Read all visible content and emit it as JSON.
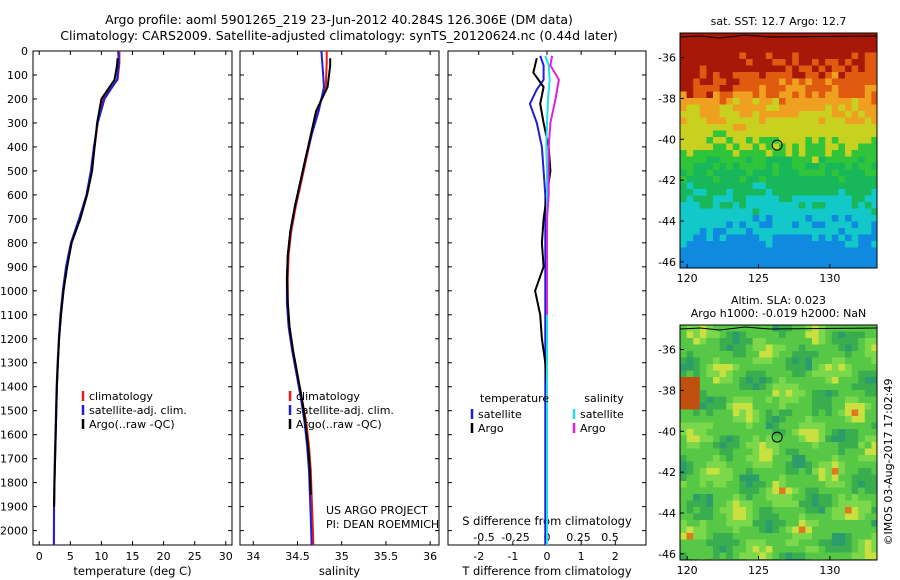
{
  "header": {
    "line1": "Argo profile: aoml 5901265_219 23-Jun-2012 40.284S 126.306E (DM data)",
    "line2": "Climatology: CARS2009. Satellite-adjusted climatology: synTS_20120624.nc (0.44d later)"
  },
  "side_text": "©IMOS 03-Aug-2017 17:02:49",
  "colors": {
    "climatology": "#e41a1c",
    "satellite": "#1f1fd6",
    "argo": "#000000",
    "sal_satellite": "#20e0e8",
    "sal_argo": "#e020e0"
  },
  "depth_axis": {
    "ticks": [
      "0",
      "100",
      "200",
      "300",
      "400",
      "500",
      "600",
      "700",
      "800",
      "900",
      "1000",
      "1100",
      "1200",
      "1300",
      "1400",
      "1500",
      "1600",
      "1700",
      "1800",
      "1900",
      "2000"
    ],
    "values": [
      0,
      100,
      200,
      300,
      400,
      500,
      600,
      700,
      800,
      900,
      1000,
      1100,
      1200,
      1300,
      1400,
      1500,
      1600,
      1700,
      1800,
      1900,
      2000
    ],
    "range": [
      0,
      2060
    ]
  },
  "chart_data": [
    {
      "type": "line",
      "xlabel": "temperature (deg C)",
      "xlim": [
        -1,
        31
      ],
      "xticks": [
        "0",
        "5",
        "10",
        "15",
        "20",
        "25",
        "30"
      ],
      "xtick_values": [
        0,
        5,
        10,
        15,
        20,
        25,
        30
      ],
      "ylim": [
        0,
        2060
      ],
      "legend": [
        "climatology",
        "satellite-adj. clim.",
        "Argo(..raw -QC)"
      ],
      "series": [
        {
          "name": "climatology",
          "color": "#e41a1c",
          "x": [
            12.9,
            12.9,
            12.6,
            10.2,
            9.4,
            8.9,
            8.4,
            7.6,
            6.5,
            5.2,
            4.4,
            3.9,
            3.5,
            3.2,
            3.0,
            2.85,
            2.75,
            2.65,
            2.55,
            2.45,
            2.4,
            2.38
          ],
          "y": [
            0,
            50,
            120,
            200,
            300,
            400,
            500,
            600,
            700,
            800,
            900,
            1000,
            1100,
            1200,
            1300,
            1400,
            1500,
            1600,
            1700,
            1800,
            1900,
            2060
          ]
        },
        {
          "name": "satellite-adj. clim.",
          "color": "#1f1fd6",
          "x": [
            12.7,
            12.8,
            12.5,
            10.5,
            9.4,
            8.8,
            8.3,
            7.6,
            6.4,
            5.1,
            4.3,
            3.8,
            3.4,
            3.15,
            2.95,
            2.8,
            2.7,
            2.6,
            2.5,
            2.42,
            2.37,
            2.35
          ],
          "y": [
            0,
            50,
            120,
            200,
            300,
            400,
            500,
            600,
            700,
            800,
            900,
            1000,
            1100,
            1200,
            1300,
            1400,
            1500,
            1600,
            1700,
            1800,
            1900,
            2060
          ]
        },
        {
          "name": "Argo(..raw -QC)",
          "color": "#000000",
          "x": [
            12.6,
            12.5,
            12.1,
            10.0,
            9.3,
            8.9,
            8.5,
            7.7,
            6.6,
            5.2,
            4.5,
            3.9,
            3.5,
            3.2,
            3.0,
            2.85,
            2.75,
            2.65,
            2.55,
            2.45,
            2.4
          ],
          "y": [
            30,
            60,
            120,
            200,
            300,
            400,
            500,
            600,
            700,
            800,
            900,
            1000,
            1100,
            1200,
            1300,
            1400,
            1500,
            1600,
            1700,
            1800,
            1900
          ]
        }
      ]
    },
    {
      "type": "line",
      "xlabel": "salinity",
      "xlim": [
        33.85,
        36.1
      ],
      "xticks": [
        "34",
        "34.5",
        "35",
        "35.5",
        "36"
      ],
      "xtick_values": [
        34,
        34.5,
        35,
        35.5,
        36
      ],
      "ylim": [
        0,
        2060
      ],
      "legend": [
        "climatology",
        "satellite-adj. clim.",
        "Argo(..raw -QC)"
      ],
      "annotation": [
        "US ARGO PROJECT",
        "PI: DEAN ROEMMICH"
      ],
      "series": [
        {
          "name": "climatology",
          "color": "#e41a1c",
          "x": [
            34.83,
            34.83,
            34.82,
            34.72,
            34.66,
            34.6,
            34.54,
            34.48,
            34.43,
            34.4,
            34.39,
            34.39,
            34.41,
            34.45,
            34.5,
            34.55,
            34.6,
            34.63,
            34.65,
            34.66,
            34.67,
            34.68
          ],
          "y": [
            0,
            50,
            150,
            250,
            350,
            450,
            550,
            650,
            750,
            850,
            950,
            1050,
            1150,
            1250,
            1350,
            1450,
            1550,
            1650,
            1750,
            1850,
            1950,
            2060
          ]
        },
        {
          "name": "satellite-adj. clim.",
          "color": "#1f1fd6",
          "x": [
            34.77,
            34.78,
            34.8,
            34.74,
            34.66,
            34.59,
            34.53,
            34.47,
            34.42,
            34.39,
            34.38,
            34.38,
            34.4,
            34.44,
            34.49,
            34.54,
            34.58,
            34.61,
            34.63,
            34.64,
            34.65,
            34.66
          ],
          "y": [
            0,
            50,
            150,
            250,
            350,
            450,
            550,
            650,
            750,
            850,
            950,
            1050,
            1150,
            1250,
            1350,
            1450,
            1550,
            1650,
            1750,
            1850,
            1950,
            2060
          ]
        },
        {
          "name": "Argo(..raw -QC)",
          "color": "#000000",
          "x": [
            34.87,
            34.87,
            34.84,
            34.71,
            34.65,
            34.59,
            34.53,
            34.47,
            34.42,
            34.39,
            34.38,
            34.39,
            34.41,
            34.45,
            34.5,
            34.55,
            34.59,
            34.62,
            34.64,
            34.65
          ],
          "y": [
            30,
            60,
            150,
            250,
            350,
            450,
            550,
            650,
            750,
            850,
            950,
            1050,
            1150,
            1250,
            1350,
            1450,
            1550,
            1650,
            1750,
            1850
          ]
        }
      ]
    },
    {
      "type": "line",
      "xlabel": "T difference from climatology",
      "xlabel_top": "S difference from climatology",
      "xlim": [
        -2.9,
        2.9
      ],
      "xticks": [
        "-2",
        "-1",
        "0",
        "1",
        "2"
      ],
      "xtick_values": [
        -2,
        -1,
        0,
        1,
        2
      ],
      "s_xticks": [
        "-0.5",
        "-0.25",
        "0",
        "0.25",
        "0.5"
      ],
      "s_xtick_values": [
        -0.5,
        -0.25,
        0,
        0.25,
        0.5
      ],
      "ylim": [
        0,
        2060
      ],
      "legend_groups": [
        {
          "title": "temperature",
          "items": [
            "satellite",
            "Argo"
          ]
        },
        {
          "title": "salinity",
          "items": [
            "satellite",
            "Argo"
          ]
        }
      ],
      "series": [
        {
          "name": "temperature satellite",
          "color": "#1f1fd6",
          "x": [
            -0.2,
            -0.1,
            -0.1,
            -0.3,
            -0.5,
            -0.3,
            -0.15,
            -0.1,
            -0.05,
            -0.05,
            -0.05,
            -0.05,
            -0.05,
            -0.05,
            -0.05,
            -0.05,
            -0.05,
            -0.05,
            -0.05,
            -0.05,
            -0.05
          ],
          "y": [
            20,
            60,
            120,
            160,
            220,
            300,
            400,
            500,
            600,
            700,
            800,
            900,
            1000,
            1100,
            1200,
            1300,
            1400,
            1500,
            1600,
            1800,
            2060
          ]
        },
        {
          "name": "temperature Argo",
          "color": "#000000",
          "x": [
            -0.3,
            -0.4,
            -0.1,
            -0.2,
            -0.1,
            0.05,
            0.1,
            0.0,
            -0.1,
            -0.15,
            -0.1,
            -0.35,
            -0.2,
            -0.15,
            -0.05,
            0.0,
            0.0,
            0.0,
            0.0
          ],
          "y": [
            30,
            90,
            150,
            220,
            300,
            400,
            500,
            600,
            700,
            800,
            900,
            1000,
            1100,
            1200,
            1300,
            1400,
            1500,
            1600,
            1900
          ]
        },
        {
          "name": "salinity satellite",
          "color": "#20e0e8",
          "x": [
            -0.05,
            0.05,
            0.08,
            0.03,
            0.0,
            -0.02,
            0.0,
            0.0,
            0.0,
            0.0,
            0.0,
            0.0,
            0.0,
            0.0,
            0.0,
            0.0,
            0.0,
            0.0,
            0.0
          ],
          "y": [
            20,
            60,
            120,
            200,
            300,
            400,
            500,
            600,
            700,
            800,
            900,
            1000,
            1100,
            1200,
            1300,
            1500,
            1700,
            1900,
            2060
          ]
        },
        {
          "name": "salinity Argo",
          "color": "#e020e0",
          "x": [
            0.15,
            0.1,
            0.35,
            0.25,
            0.1,
            0.05,
            0.05,
            0.05,
            0.0,
            0.0,
            0.0,
            0.0,
            0.0
          ],
          "y": [
            20,
            60,
            120,
            200,
            300,
            400,
            500,
            600,
            700,
            800,
            900,
            1000,
            1100
          ]
        }
      ]
    }
  ],
  "maps": [
    {
      "title": "sat. SST: 12.7 Argo: 12.7",
      "kind": "sst",
      "lon_range": [
        119.5,
        133.3
      ],
      "lat_range": [
        -46.3,
        -34.8
      ],
      "xticks": [
        "120",
        "125",
        "130"
      ],
      "xtick_values": [
        120,
        125,
        130
      ],
      "yticks": [
        "-36",
        "-38",
        "-40",
        "-42",
        "-44",
        "-46"
      ],
      "ytick_values": [
        -36,
        -38,
        -40,
        -42,
        -44,
        -46
      ],
      "marker": {
        "lon": 126.306,
        "lat": -40.284
      }
    },
    {
      "title": "Altim. SLA: 0.023",
      "subtitle": "Argo h1000: -0.019 h2000: NaN",
      "kind": "sla",
      "lon_range": [
        119.5,
        133.3
      ],
      "lat_range": [
        -46.3,
        -34.8
      ],
      "xticks": [
        "120",
        "125",
        "130"
      ],
      "xtick_values": [
        120,
        125,
        130
      ],
      "yticks": [
        "-36",
        "-38",
        "-40",
        "-42",
        "-44",
        "-46"
      ],
      "ytick_values": [
        -36,
        -38,
        -40,
        -42,
        -44,
        -46
      ],
      "marker": {
        "lon": 126.306,
        "lat": -40.284
      }
    }
  ]
}
